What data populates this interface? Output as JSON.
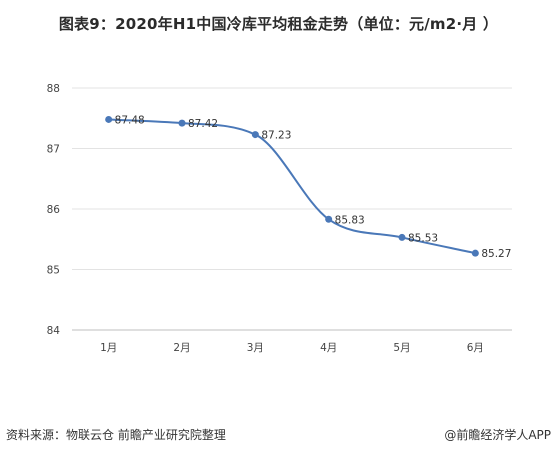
{
  "chart_data": {
    "type": "line",
    "title": "图表9：2020年H1中国冷库平均租金走势（单位：元/m2·月 ）",
    "categories": [
      "1月",
      "2月",
      "3月",
      "4月",
      "5月",
      "6月"
    ],
    "series": [
      {
        "values": [
          87.48,
          87.42,
          87.23,
          85.83,
          85.53,
          85.27
        ]
      }
    ],
    "data_labels": [
      "87.48",
      "87.42",
      "87.23",
      "85.83",
      "85.53",
      "85.27"
    ],
    "ylim": [
      84,
      88
    ],
    "yticks": [
      "84",
      "85",
      "86",
      "87",
      "88"
    ],
    "grid": true,
    "smooth": true,
    "line_color": "#4a78b8"
  },
  "footer": {
    "source": "资料来源：物联云仓 前瞻产业研究院整理",
    "credit": "@前瞻经济学人APP"
  }
}
